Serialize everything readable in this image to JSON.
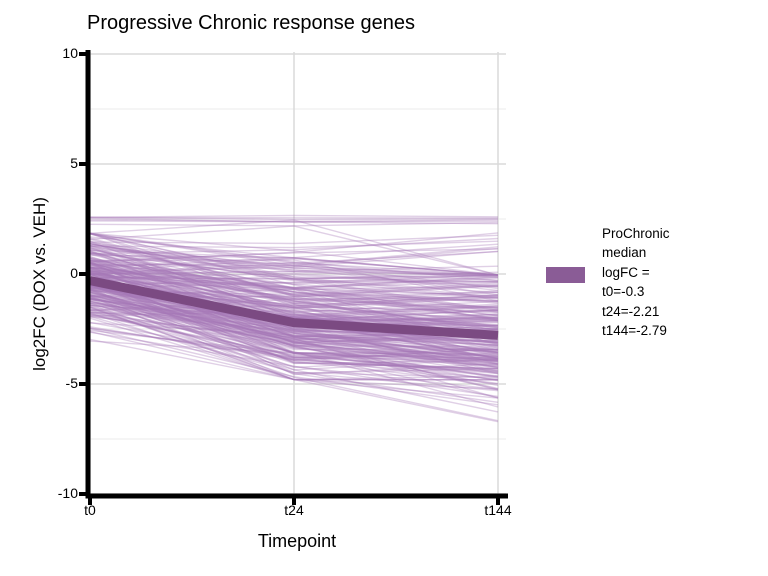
{
  "chart_data": {
    "type": "line",
    "title": "Progressive Chronic response genes",
    "xlabel": "Timepoint",
    "ylabel": "log2FC (DOX vs. VEH)",
    "categories": [
      "t0",
      "t24",
      "t144"
    ],
    "ylim": [
      -10,
      10
    ],
    "yticks": [
      10,
      5,
      0,
      -5,
      -10
    ],
    "ytick_labels": [
      "10",
      "5",
      "0",
      "-5",
      "-10"
    ],
    "yticks_minor": [
      7.5,
      2.5,
      -2.5,
      -7.5
    ],
    "grid": true,
    "legend_position": "right",
    "series": [
      {
        "name": "ProChronic median logFC",
        "role": "median",
        "values": [
          -0.3,
          -2.21,
          -2.79
        ]
      }
    ],
    "ensemble": {
      "description": "Several hundred semi-transparent purple per-gene trajectories; dense bundle from ~[-3,1.9] at t0 declining to ~[-7.1,-0.1] at t144, a few flat outliers near +2.4 and ~a dozen lines rising to +1..+2.2",
      "seed": 11,
      "n_main": 270,
      "n_risers": 12,
      "n_flat_high": 7,
      "line_opacity": 0.35,
      "t0_mean": -0.3,
      "t0_sd": 1.05,
      "step1_mean": -1.91,
      "step1_sd": 0.95,
      "step2_mean": -0.58,
      "step2_sd": 0.85,
      "t0_range": [
        -3.05,
        1.85
      ],
      "t24_range": [
        -4.8,
        2.4
      ],
      "t144_range": [
        -7.1,
        2.6
      ]
    },
    "colors": {
      "line": "#a678b8",
      "median": "#7b4a82",
      "legend_swatch": "#8a5c96",
      "grid_major": "#dadada",
      "grid_minor": "#ebebeb",
      "axis": "#000000"
    }
  },
  "legend": {
    "label": "ProChronic\nmedian logFC =\nt0=-0.3\nt24=-2.21\nt144=-2.79"
  }
}
